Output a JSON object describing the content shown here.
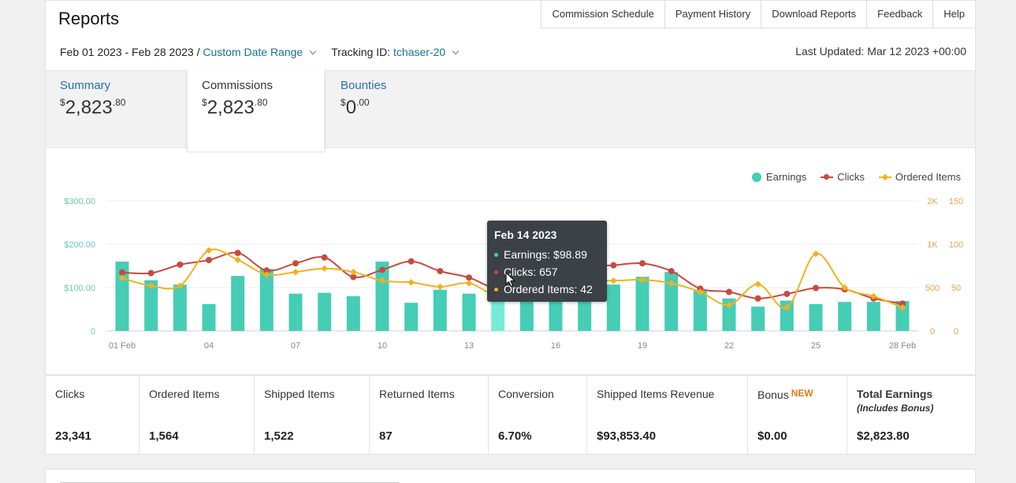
{
  "header": {
    "title": "Reports",
    "links": [
      "Commission Schedule",
      "Payment History",
      "Download Reports",
      "Feedback",
      "Help"
    ]
  },
  "filters": {
    "date_range": "Feb 01 2023 - Feb 28 2023",
    "separator": "/",
    "custom_range": "Custom Date Range",
    "tracking_label": "Tracking ID:",
    "tracking_id": "tchaser-20",
    "last_updated": "Last Updated: Mar 12 2023 +00:00"
  },
  "tabs": [
    {
      "label": "Summary",
      "currency": "$",
      "whole": "2,823",
      "cents": ".80"
    },
    {
      "label": "Commissions",
      "currency": "$",
      "whole": "2,823",
      "cents": ".80"
    },
    {
      "label": "Bounties",
      "currency": "$",
      "whole": "0",
      "cents": ".00"
    }
  ],
  "tooltip": {
    "title": "Feb 14 2023",
    "earnings": "Earnings: $98.89",
    "clicks": "Clicks: 657",
    "ordered": "Ordered Items: 42"
  },
  "colors": {
    "earnings": "#45cdb5",
    "earnings_highlight": "#74ecd8",
    "clicks": "#c9493f",
    "ordered": "#efb320",
    "axis_earnings": "#6bc9b5",
    "axis_clicks": "#e0a84e",
    "accent_new": "#e47911"
  },
  "chart_data": {
    "type": "bar",
    "title": "",
    "x": [
      "01 Feb",
      "02 Feb",
      "03 Feb",
      "04 Feb",
      "05 Feb",
      "06 Feb",
      "07 Feb",
      "08 Feb",
      "09 Feb",
      "10 Feb",
      "11 Feb",
      "12 Feb",
      "13 Feb",
      "14 Feb",
      "15 Feb",
      "16 Feb",
      "17 Feb",
      "18 Feb",
      "19 Feb",
      "20 Feb",
      "21 Feb",
      "22 Feb",
      "23 Feb",
      "24 Feb",
      "25 Feb",
      "26 Feb",
      "27 Feb",
      "28 Feb"
    ],
    "x_tick_labels": [
      "01 Feb",
      "04",
      "07",
      "10",
      "13",
      "16",
      "19",
      "22",
      "25",
      "28 Feb"
    ],
    "y_left": {
      "ticks": [
        "0",
        "$100.00",
        "$200.00",
        "$300.00"
      ],
      "range": [
        0,
        300
      ]
    },
    "y_clicks": {
      "ticks": [
        "0",
        "500",
        "1K",
        "2K"
      ],
      "range": [
        0,
        2000
      ]
    },
    "y_items": {
      "ticks": [
        "0",
        "50",
        "100",
        "150"
      ],
      "range": [
        0,
        150
      ]
    },
    "legend": [
      "Earnings",
      "Clicks",
      "Ordered Items"
    ],
    "legend_position": "top-right",
    "series": [
      {
        "name": "Earnings",
        "kind": "bar",
        "axis": "left",
        "values": [
          160,
          117,
          107,
          62,
          127,
          143,
          86,
          88,
          80,
          160,
          65,
          95,
          86,
          98.89,
          96,
          98,
          102,
          107,
          125,
          136,
          93,
          75,
          56,
          70,
          62,
          67,
          67,
          69
        ]
      },
      {
        "name": "Clicks",
        "kind": "line",
        "axis": "clicks",
        "values": [
          900,
          890,
          1020,
          1090,
          1200,
          930,
          1040,
          1130,
          830,
          940,
          1070,
          920,
          820,
          657,
          820,
          830,
          980,
          1010,
          1040,
          920,
          650,
          600,
          500,
          570,
          660,
          640,
          500,
          420
        ]
      },
      {
        "name": "Ordered Items",
        "kind": "line",
        "axis": "items",
        "values": [
          61,
          52,
          52,
          93,
          82,
          65,
          68,
          72,
          68,
          58,
          56,
          51,
          55,
          42,
          63,
          66,
          59,
          58,
          59,
          55,
          45,
          30,
          54,
          27,
          89,
          50,
          40,
          27
        ]
      }
    ],
    "highlight_index": 13,
    "grid": true
  },
  "stats": [
    {
      "label": "Clicks",
      "value": "23,341"
    },
    {
      "label": "Ordered Items",
      "value": "1,564"
    },
    {
      "label": "Shipped Items",
      "value": "1,522"
    },
    {
      "label": "Returned Items",
      "value": "87"
    },
    {
      "label": "Conversion",
      "value": "6.70%"
    },
    {
      "label": "Shipped Items Revenue",
      "value": "$93,853.40"
    },
    {
      "label": "Bonus",
      "badge": "NEW",
      "value": "$0.00"
    },
    {
      "label": "Total Earnings",
      "sub": "(Includes Bonus)",
      "value": "$2,823.80"
    }
  ]
}
